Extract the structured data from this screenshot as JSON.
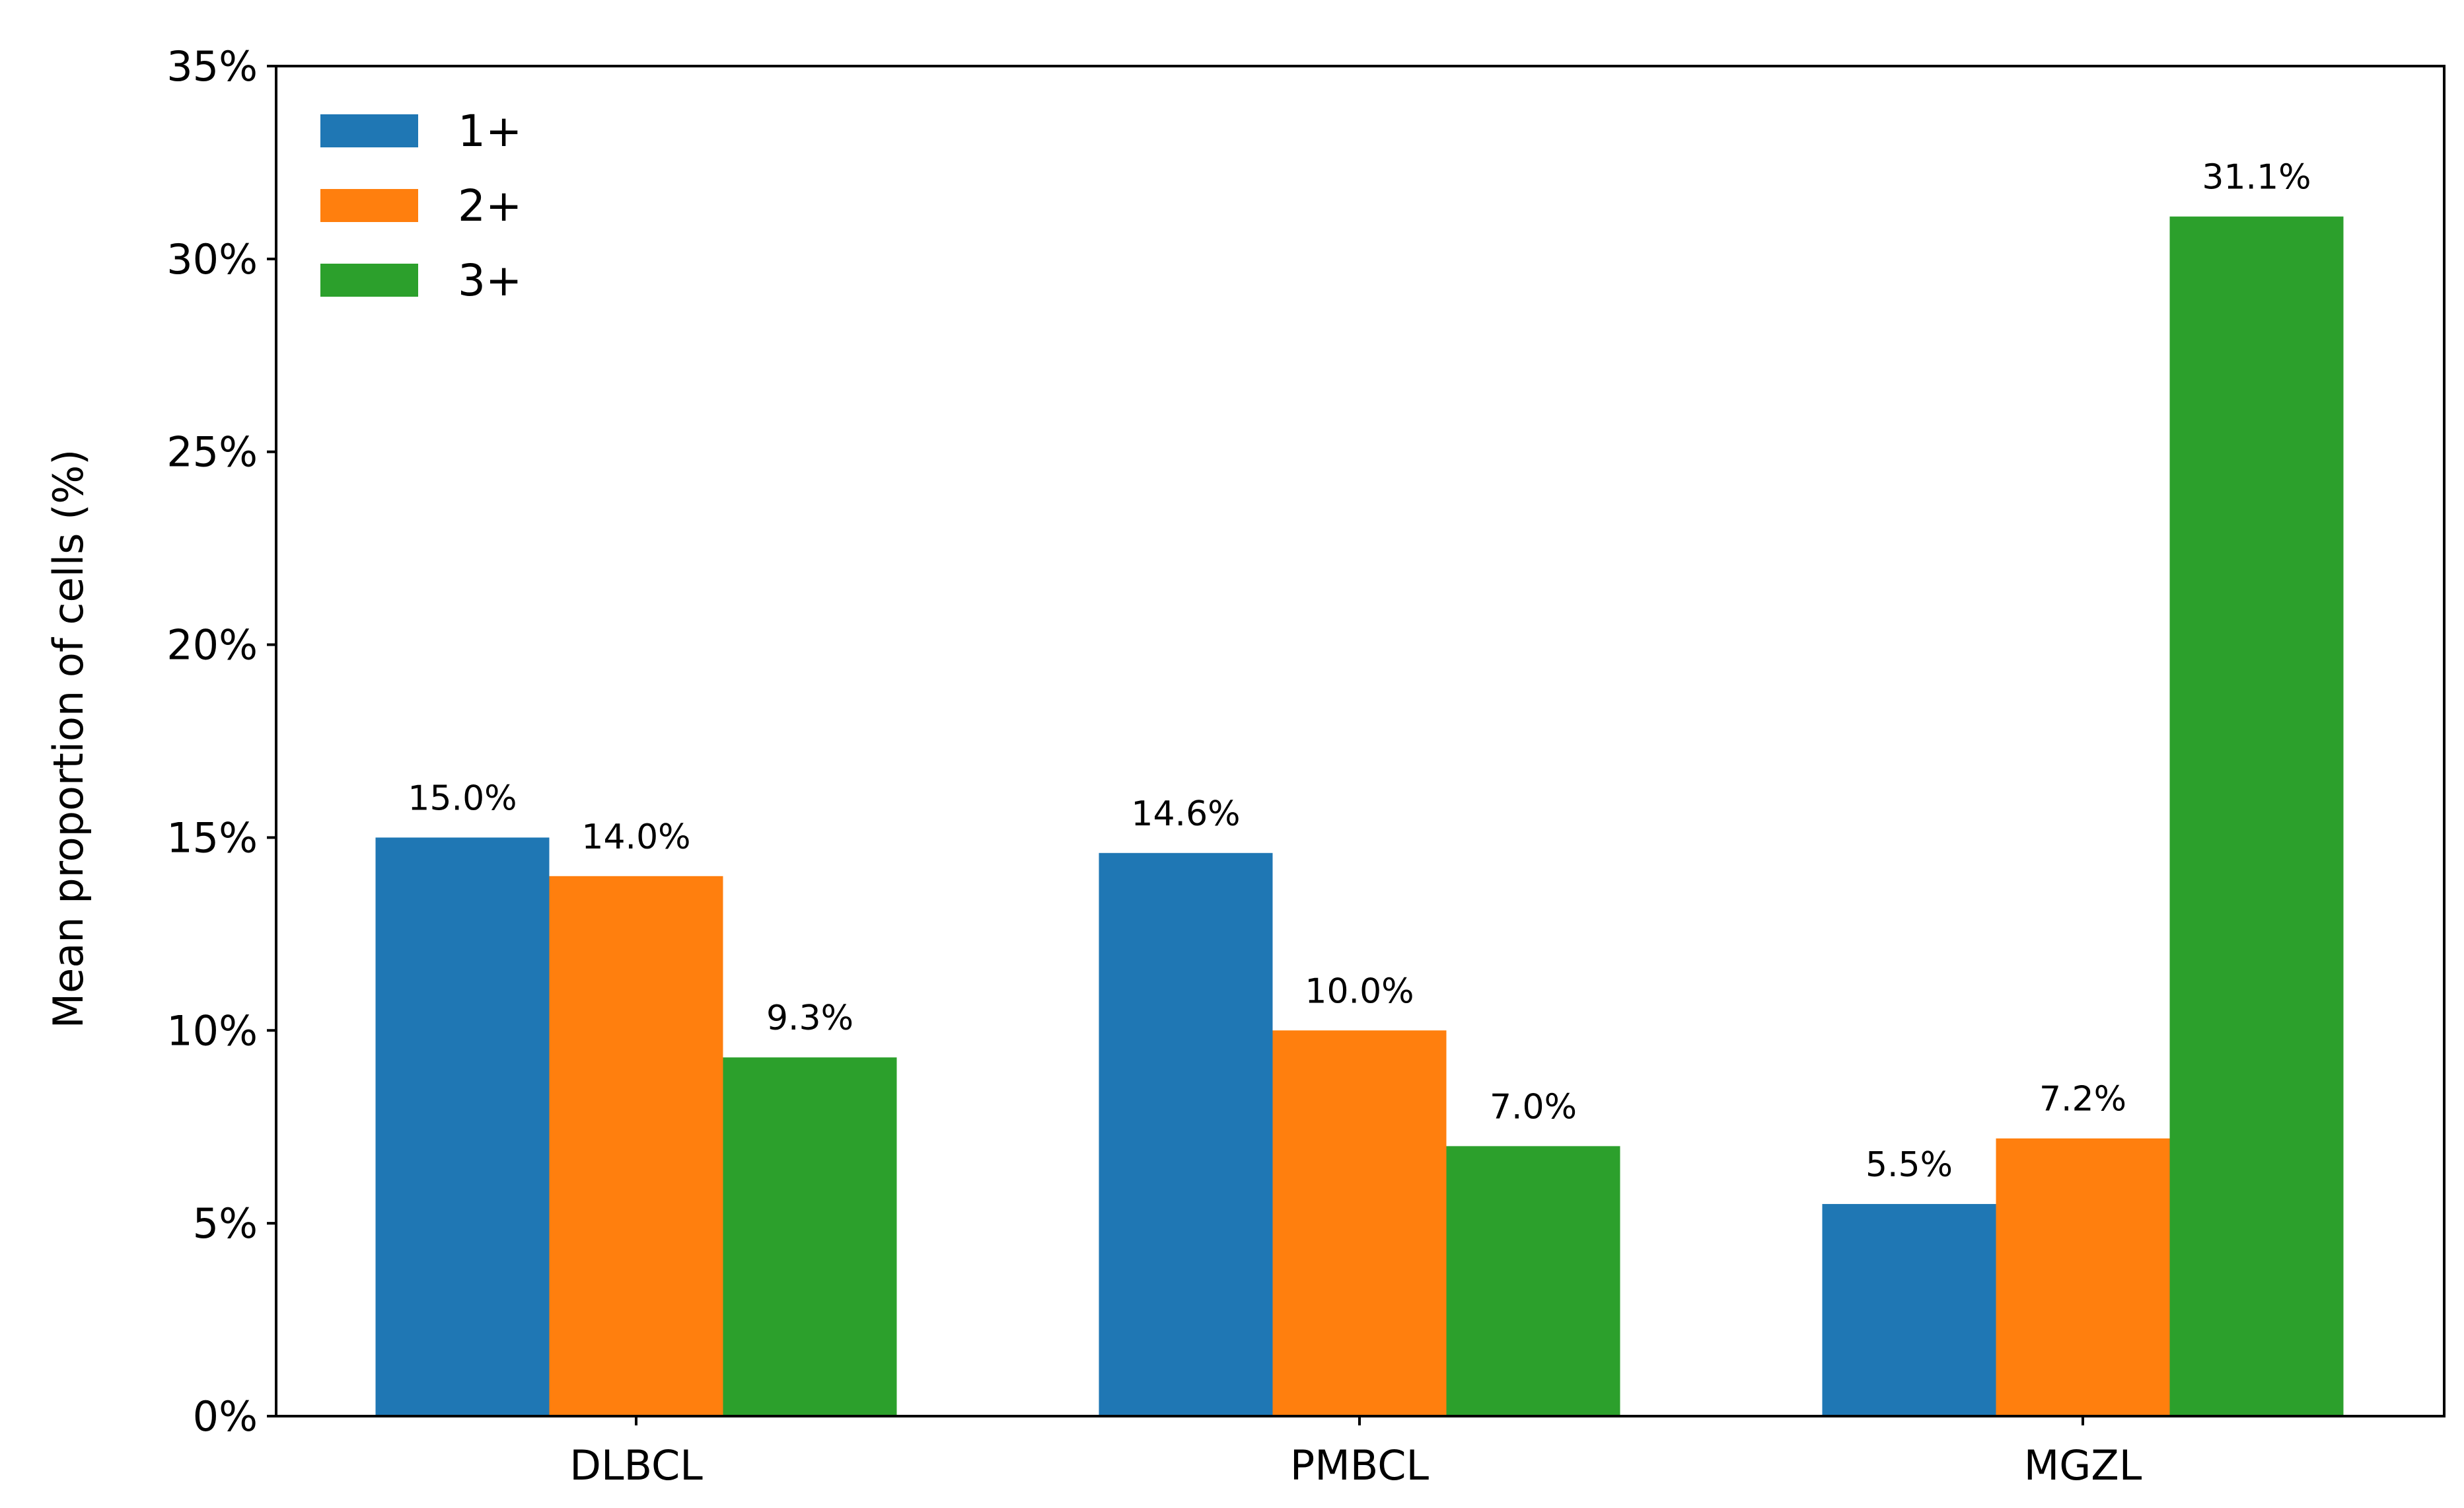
{
  "chart_data": {
    "type": "bar",
    "title": "",
    "xlabel": "",
    "ylabel": "Mean proportion of cells (%)",
    "ylim": [
      0,
      35
    ],
    "y_ticks": [
      0,
      5,
      10,
      15,
      20,
      25,
      30,
      35
    ],
    "y_tick_format": "percent",
    "categories": [
      "DLBCL",
      "PMBCL",
      "MGZL"
    ],
    "series": [
      {
        "name": "1+",
        "color": "#1f77b4",
        "values": [
          15.0,
          14.6,
          5.5
        ],
        "labels": [
          "15.0%",
          "14.6%",
          "5.5%"
        ]
      },
      {
        "name": "2+",
        "color": "#ff7f0e",
        "values": [
          14.0,
          10.0,
          7.2
        ],
        "labels": [
          "14.0%",
          "10.0%",
          "7.2%"
        ]
      },
      {
        "name": "3+",
        "color": "#2ca02c",
        "values": [
          9.3,
          7.0,
          31.1
        ],
        "labels": [
          "9.3%",
          "7.0%",
          "31.1%"
        ]
      }
    ],
    "legend": {
      "location": "upper-left"
    },
    "grid": false
  }
}
